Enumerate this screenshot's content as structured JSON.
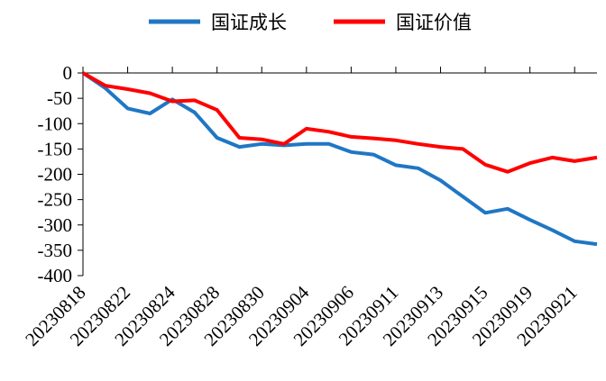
{
  "chart_data": {
    "type": "line",
    "title": "",
    "xlabel": "",
    "ylabel": "",
    "ylim": [
      -400,
      0
    ],
    "yticks": [
      0,
      -50,
      -100,
      -150,
      -200,
      -250,
      -300,
      -350,
      -400
    ],
    "ytick_labels": [
      "0",
      "-50",
      "-100",
      "-150",
      "-200",
      "-250",
      "-300",
      "-350",
      "-400"
    ],
    "x_tick_labels": [
      "20230818",
      "20230822",
      "20230824",
      "20230828",
      "20230830",
      "20230904",
      "20230906",
      "20230911",
      "20230913",
      "20230915",
      "20230919",
      "20230921"
    ],
    "grid": false,
    "legend_position": "top",
    "series": [
      {
        "name": "国证成长",
        "color": "#1f77c4",
        "values": [
          0,
          -30,
          -70,
          -80,
          -52,
          -78,
          -128,
          -146,
          -140,
          -143,
          -140,
          -140,
          -156,
          -161,
          -182,
          -188,
          -212,
          -244,
          -276,
          -268,
          -290,
          -310,
          -332,
          -338
        ]
      },
      {
        "name": "国证价值",
        "color": "#ff0000",
        "values": [
          0,
          -25,
          -32,
          -40,
          -56,
          -54,
          -73,
          -128,
          -131,
          -140,
          -110,
          -116,
          -126,
          -129,
          -133,
          -140,
          -146,
          -150,
          -181,
          -195,
          -178,
          -167,
          -174,
          -167
        ]
      }
    ]
  }
}
